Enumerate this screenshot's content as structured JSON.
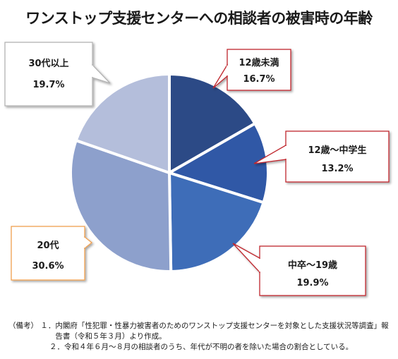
{
  "chart_data": {
    "type": "pie",
    "title": "ワンストップ支援センターへの相談者の被害時の年齢",
    "slices": [
      {
        "label": "12歳未満",
        "value": 16.7,
        "value_label": "16.7%",
        "color": "#2c4a86",
        "callout_border": "#c0282d"
      },
      {
        "label": "12歳～中学生",
        "value": 13.2,
        "value_label": "13.2%",
        "color": "#3058a6",
        "callout_border": "#c0282d"
      },
      {
        "label": "中卒～19歳",
        "value": 19.9,
        "value_label": "19.9%",
        "color": "#3e6db8",
        "callout_border": "#c0282d"
      },
      {
        "label": "20代",
        "value": 30.6,
        "value_label": "30.6%",
        "color": "#8da0cc",
        "callout_border": "#f0a050"
      },
      {
        "label": "30代以上",
        "value": 19.7,
        "value_label": "19.7%",
        "color": "#b4bedb",
        "callout_border": "#b3b3b3"
      }
    ],
    "start": "12 o'clock",
    "direction": "clockwise"
  },
  "notes": {
    "prefix": "（備考）",
    "items": [
      {
        "marker": "１．",
        "text": "内閣府「性犯罪・性暴力被害者のためのワンストップ支援センターを対象とした支援状況等調査」報告書（令和５年３月）より作成。"
      },
      {
        "marker": "２．",
        "text": "令和４年６月～８月の相談者のうち、年代が不明の者を除いた場合の割合としている。"
      }
    ]
  }
}
